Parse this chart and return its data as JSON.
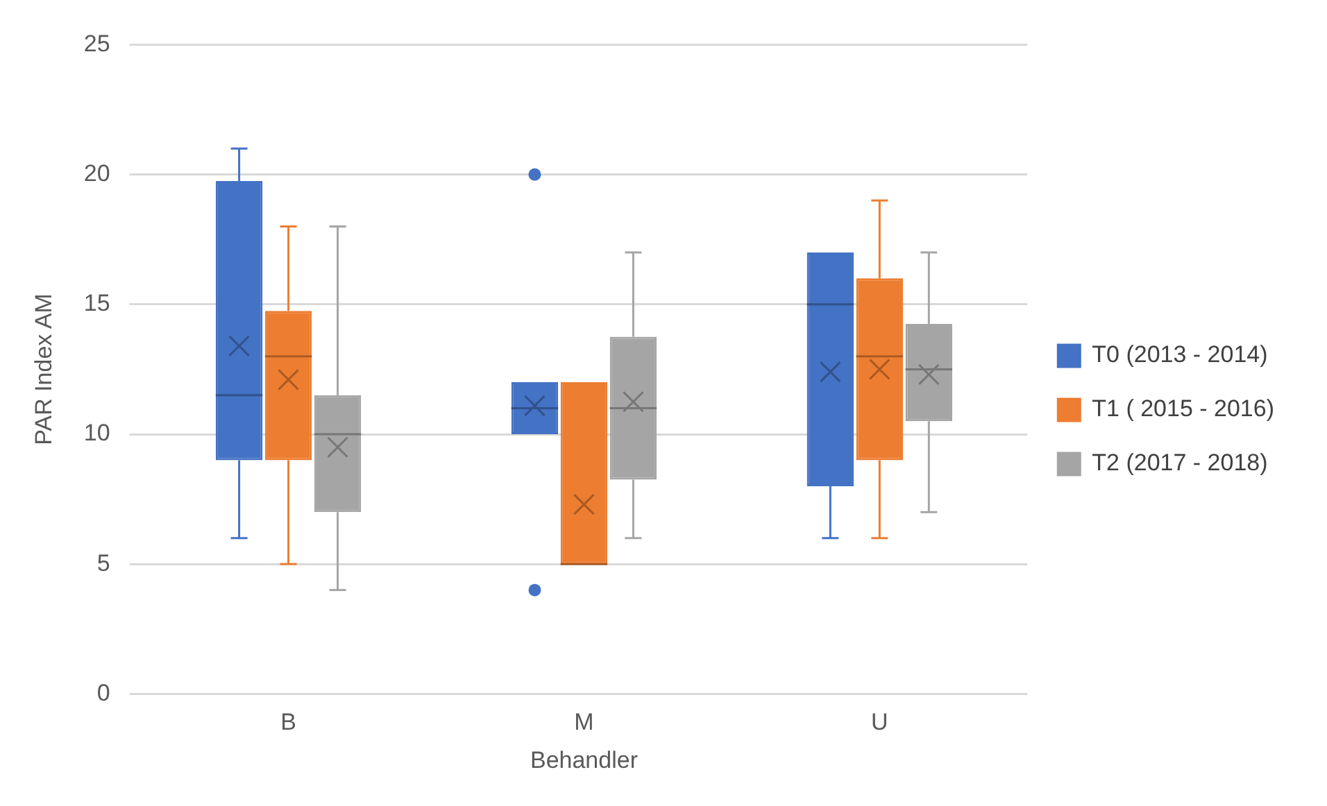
{
  "chart_data": {
    "type": "box",
    "xlabel": "Behandler",
    "ylabel": "PAR Index AM",
    "categories": [
      "B",
      "M",
      "U"
    ],
    "ylim": [
      0,
      25
    ],
    "yticks": [
      0,
      5,
      10,
      15,
      20,
      25
    ],
    "grid": "y",
    "legend": "right",
    "series": [
      {
        "name": "T0 (2013 - 2014)",
        "color": "#4472c4",
        "boxes": [
          {
            "low": 6,
            "q1": 9,
            "median": 11.5,
            "q3": 19.75,
            "high": 21,
            "mean": 13.4
          },
          {
            "low": 10,
            "q1": 10,
            "median": 11,
            "q3": 12,
            "high": 12,
            "mean": 11.1,
            "outliers": [
              20,
              4
            ]
          },
          {
            "low": 6,
            "q1": 8,
            "median": 15,
            "q3": 17,
            "high": 17,
            "mean": 12.4
          }
        ]
      },
      {
        "name": "T1 ( 2015 - 2016)",
        "color": "#ed7d31",
        "boxes": [
          {
            "low": 5,
            "q1": 9,
            "median": 13,
            "q3": 14.75,
            "high": 18,
            "mean": 12.1
          },
          {
            "low": 5,
            "q1": 5,
            "median": 5,
            "q3": 12,
            "high": 12,
            "mean": 7.3
          },
          {
            "low": 6,
            "q1": 9,
            "median": 13,
            "q3": 16,
            "high": 19,
            "mean": 12.5
          }
        ]
      },
      {
        "name": "T2 (2017 - 2018)",
        "color": "#a5a5a5",
        "boxes": [
          {
            "low": 4,
            "q1": 7,
            "median": 10,
            "q3": 11.5,
            "high": 18,
            "mean": 9.5
          },
          {
            "low": 6,
            "q1": 8.25,
            "median": 11,
            "q3": 13.75,
            "high": 17,
            "mean": 11.25
          },
          {
            "low": 7,
            "q1": 10.5,
            "median": 12.5,
            "q3": 14.25,
            "high": 17,
            "mean": 12.3
          }
        ]
      }
    ]
  }
}
